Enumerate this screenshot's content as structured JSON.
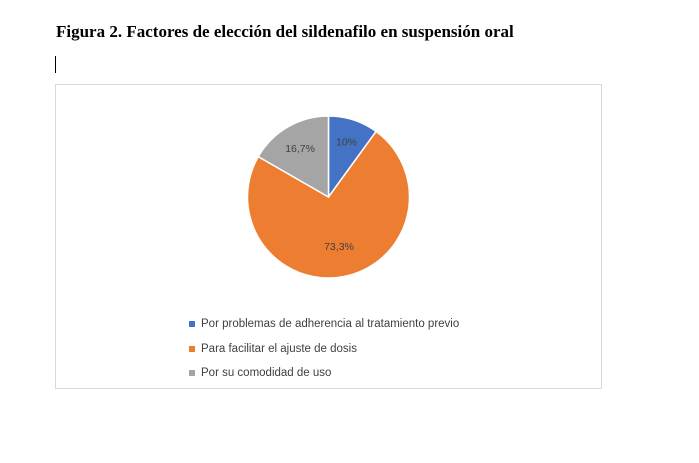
{
  "figure_title": "Figura 2. Factores de elección del sildenafilo en suspensión oral",
  "chart_data": {
    "type": "pie",
    "categories": [
      "Por problemas de adherencia al tratamiento previo",
      "Para facilitar el ajuste de dosis",
      "Por su comodidad de uso"
    ],
    "values": [
      10,
      73.3,
      16.7
    ],
    "data_labels": [
      "10%",
      "73,3%",
      "16,7%"
    ],
    "colors": [
      "#4472c4",
      "#ed7d31",
      "#a5a5a5"
    ],
    "legend_position": "bottom"
  }
}
